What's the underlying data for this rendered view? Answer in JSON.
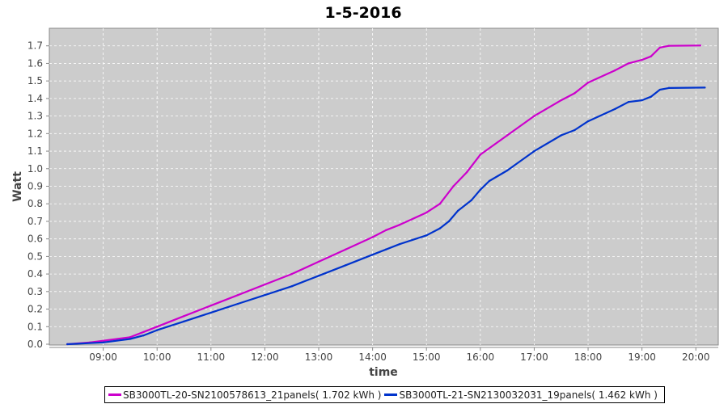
{
  "chart_data": {
    "type": "line",
    "title": "1-5-2016",
    "xlabel": "time",
    "ylabel": "Watt",
    "xlim": [
      "08:00",
      "20:25"
    ],
    "ylim": [
      0,
      1.8
    ],
    "x_ticks": [
      "09:00",
      "10:00",
      "11:00",
      "12:00",
      "13:00",
      "14:00",
      "15:00",
      "16:00",
      "17:00",
      "18:00",
      "19:00",
      "20:00"
    ],
    "y_ticks": [
      "0.0",
      "0.1",
      "0.2",
      "0.3",
      "0.4",
      "0.5",
      "0.6",
      "0.7",
      "0.8",
      "0.9",
      "1.0",
      "1.1",
      "1.2",
      "1.3",
      "1.4",
      "1.5",
      "1.6",
      "1.7"
    ],
    "grid": true,
    "legend_placement": "bottom",
    "background": "#cccccc",
    "series": [
      {
        "name": "SB3000TL-20-SN2100578613_21panels( 1.702 kWh )",
        "color": "#cc00cc",
        "x": [
          "08:20",
          "08:45",
          "09:00",
          "09:30",
          "09:45",
          "10:00",
          "10:30",
          "11:00",
          "11:30",
          "12:00",
          "12:30",
          "13:00",
          "13:30",
          "14:00",
          "14:15",
          "14:30",
          "15:00",
          "15:15",
          "15:30",
          "15:45",
          "16:00",
          "16:30",
          "17:00",
          "17:30",
          "17:45",
          "18:00",
          "18:30",
          "18:45",
          "19:00",
          "19:10",
          "19:20",
          "19:30",
          "20:05"
        ],
        "values": [
          0,
          0.01,
          0.02,
          0.04,
          0.07,
          0.1,
          0.16,
          0.22,
          0.28,
          0.34,
          0.4,
          0.47,
          0.54,
          0.61,
          0.65,
          0.68,
          0.75,
          0.8,
          0.9,
          0.98,
          1.08,
          1.19,
          1.3,
          1.39,
          1.43,
          1.49,
          1.56,
          1.6,
          1.62,
          1.64,
          1.69,
          1.7,
          1.702
        ]
      },
      {
        "name": "SB3000TL-21-SN2130032031_19panels( 1.462 kWh )",
        "color": "#0033cc",
        "x": [
          "08:20",
          "09:00",
          "09:30",
          "09:45",
          "10:00",
          "10:30",
          "11:00",
          "11:30",
          "12:00",
          "12:30",
          "13:00",
          "13:30",
          "14:00",
          "14:15",
          "14:30",
          "15:00",
          "15:15",
          "15:25",
          "15:35",
          "15:50",
          "16:00",
          "16:10",
          "16:30",
          "17:00",
          "17:30",
          "17:45",
          "18:00",
          "18:30",
          "18:45",
          "19:00",
          "19:10",
          "19:20",
          "19:30",
          "20:10"
        ],
        "values": [
          0,
          0.01,
          0.03,
          0.05,
          0.08,
          0.13,
          0.18,
          0.23,
          0.28,
          0.33,
          0.39,
          0.45,
          0.51,
          0.54,
          0.57,
          0.62,
          0.66,
          0.7,
          0.76,
          0.82,
          0.88,
          0.93,
          0.99,
          1.1,
          1.19,
          1.22,
          1.27,
          1.34,
          1.38,
          1.39,
          1.41,
          1.45,
          1.46,
          1.462
        ]
      }
    ]
  }
}
